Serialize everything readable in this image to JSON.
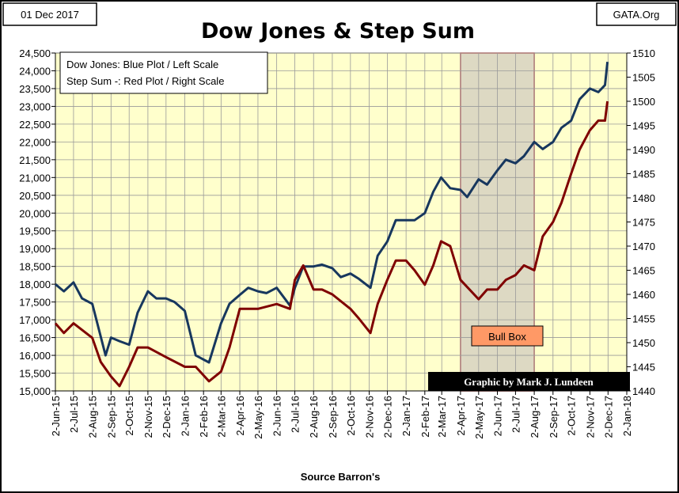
{
  "header": {
    "date": "01 Dec 2017",
    "source_site": "GATA.Org",
    "title": "Dow Jones & Step Sum"
  },
  "legend": {
    "line1": "Dow Jones: Blue Plot / Left Scale",
    "line2": "Step Sum -: Red Plot / Right Scale"
  },
  "annotations": {
    "bull_box": "Bull Box",
    "credit": "Graphic by Mark J. Lundeen"
  },
  "xlabel": "Source Barron's",
  "colors": {
    "plot_bg": "#ffffcc",
    "dow": "#17375e",
    "stepsum": "#7f0000",
    "bull_box_fill": "#ddd9c3",
    "bull_box_border": "#c0504d",
    "bull_label_bg": "#ff9966"
  },
  "chart_data": {
    "type": "line",
    "x_tick_labels": [
      "2-Jun-15",
      "2-Jul-15",
      "2-Aug-15",
      "2-Sep-15",
      "2-Oct-15",
      "2-Nov-15",
      "2-Dec-15",
      "2-Jan-16",
      "2-Feb-16",
      "2-Mar-16",
      "2-Apr-16",
      "2-May-16",
      "2-Jun-16",
      "2-Jul-16",
      "2-Aug-16",
      "2-Sep-16",
      "2-Oct-16",
      "2-Nov-16",
      "2-Dec-16",
      "2-Jan-17",
      "2-Feb-17",
      "2-Mar-17",
      "2-Apr-17",
      "2-May-17",
      "2-Jun-17",
      "2-Jul-17",
      "2-Aug-17",
      "2-Sep-17",
      "2-Oct-17",
      "2-Nov-17",
      "2-Dec-17",
      "2-Jan-18"
    ],
    "xlim": [
      "2-Jun-15",
      "2-Jan-18"
    ],
    "left_axis": {
      "ylim": [
        15000,
        24500
      ],
      "ticks": [
        "15,000",
        "15,500",
        "16,000",
        "16,500",
        "17,000",
        "17,500",
        "18,000",
        "18,500",
        "19,000",
        "19,500",
        "20,000",
        "20,500",
        "21,000",
        "21,500",
        "22,000",
        "22,500",
        "23,000",
        "23,500",
        "24,000",
        "24,500"
      ]
    },
    "right_axis": {
      "ylim": [
        1440,
        1510
      ],
      "ticks": [
        "1440",
        "1445",
        "1450",
        "1455",
        "1460",
        "1465",
        "1470",
        "1475",
        "1480",
        "1485",
        "1490",
        "1495",
        "1500",
        "1505",
        "1510"
      ]
    },
    "grid": true,
    "bull_box_range": [
      "2-Apr-17",
      "2-Aug-17"
    ],
    "series": [
      {
        "axis": "left",
        "x": [
          "2-Jun-15",
          "16-Jun-15",
          "2-Jul-15",
          "16-Jul-15",
          "2-Aug-15",
          "24-Aug-15",
          "2-Sep-15",
          "16-Sep-15",
          "2-Oct-15",
          "16-Oct-15",
          "2-Nov-15",
          "16-Nov-15",
          "2-Dec-15",
          "16-Dec-15",
          "2-Jan-16",
          "20-Jan-16",
          "11-Feb-16",
          "2-Mar-16",
          "16-Mar-16",
          "2-Apr-16",
          "16-Apr-16",
          "2-May-16",
          "16-May-16",
          "2-Jun-16",
          "24-Jun-16",
          "2-Jul-16",
          "16-Jul-16",
          "2-Aug-16",
          "16-Aug-16",
          "2-Sep-16",
          "16-Sep-16",
          "2-Oct-16",
          "16-Oct-16",
          "4-Nov-16",
          "16-Nov-16",
          "2-Dec-16",
          "16-Dec-16",
          "2-Jan-17",
          "16-Jan-17",
          "2-Feb-17",
          "16-Feb-17",
          "1-Mar-17",
          "16-Mar-17",
          "2-Apr-17",
          "13-Apr-17",
          "2-May-17",
          "16-May-17",
          "2-Jun-17",
          "16-Jun-17",
          "2-Jul-17",
          "16-Jul-17",
          "2-Aug-17",
          "16-Aug-17",
          "2-Sep-17",
          "16-Sep-17",
          "2-Oct-17",
          "16-Oct-17",
          "2-Nov-17",
          "16-Nov-17",
          "27-Nov-17",
          "1-Dec-17"
        ],
        "y": [
          18000,
          17800,
          18050,
          17600,
          17450,
          16000,
          16500,
          16400,
          16300,
          17200,
          17800,
          17600,
          17600,
          17500,
          17250,
          16000,
          15800,
          16900,
          17450,
          17700,
          17900,
          17800,
          17750,
          17900,
          17400,
          17900,
          18500,
          18500,
          18550,
          18450,
          18200,
          18300,
          18150,
          17900,
          18800,
          19200,
          19800,
          19800,
          19800,
          20000,
          20600,
          21000,
          20700,
          20650,
          20450,
          20950,
          20800,
          21200,
          21500,
          21400,
          21600,
          22000,
          21800,
          22000,
          22400,
          22600,
          23200,
          23500,
          23400,
          23600,
          24250
        ]
      },
      {
        "axis": "right",
        "x": [
          "2-Jun-15",
          "16-Jun-15",
          "2-Jul-15",
          "2-Aug-15",
          "16-Aug-15",
          "2-Sep-15",
          "16-Sep-15",
          "2-Oct-15",
          "16-Oct-15",
          "2-Nov-15",
          "2-Dec-15",
          "2-Jan-16",
          "20-Jan-16",
          "11-Feb-16",
          "2-Mar-16",
          "16-Mar-16",
          "2-Apr-16",
          "2-May-16",
          "2-Jun-16",
          "24-Jun-16",
          "2-Jul-16",
          "16-Jul-16",
          "2-Aug-16",
          "16-Aug-16",
          "2-Sep-16",
          "2-Oct-16",
          "16-Oct-16",
          "4-Nov-16",
          "16-Nov-16",
          "2-Dec-16",
          "16-Dec-16",
          "2-Jan-17",
          "16-Jan-17",
          "2-Feb-17",
          "16-Feb-17",
          "1-Mar-17",
          "16-Mar-17",
          "2-Apr-17",
          "2-May-17",
          "16-May-17",
          "2-Jun-17",
          "16-Jun-17",
          "2-Jul-17",
          "16-Jul-17",
          "2-Aug-17",
          "16-Aug-17",
          "2-Sep-17",
          "16-Sep-17",
          "2-Oct-17",
          "16-Oct-17",
          "2-Nov-17",
          "16-Nov-17",
          "27-Nov-17",
          "1-Dec-17"
        ],
        "y": [
          1454,
          1452,
          1454,
          1451,
          1446,
          1443,
          1441,
          1445,
          1449,
          1449,
          1447,
          1445,
          1445,
          1442,
          1444,
          1449,
          1457,
          1457,
          1458,
          1457,
          1463,
          1466,
          1461,
          1461,
          1460,
          1457,
          1455,
          1452,
          1458,
          1463,
          1467,
          1467,
          1465,
          1462,
          1466,
          1471,
          1470,
          1463,
          1459,
          1461,
          1461,
          1463,
          1464,
          1466,
          1465,
          1472,
          1475,
          1479,
          1485,
          1490,
          1494,
          1496,
          1496,
          1500
        ]
      }
    ]
  }
}
